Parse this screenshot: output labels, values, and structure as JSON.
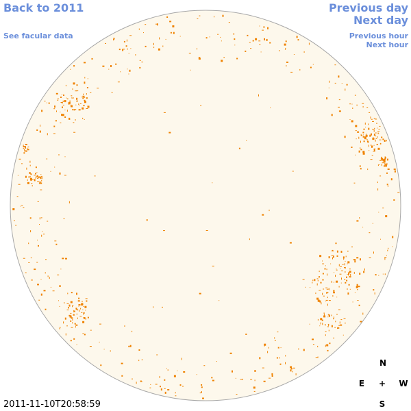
{
  "navigation": {
    "back_year": "Back to 2011",
    "facular_data": "See facular data",
    "previous_day": "Previous day",
    "next_day": "Next day",
    "previous_hour": "Previous hour",
    "next_hour": "Next hour"
  },
  "compass": {
    "north": "N",
    "east": "E",
    "center": "+",
    "west": "W",
    "south": "S"
  },
  "timestamp": "2011-11-10T20:58:59"
}
